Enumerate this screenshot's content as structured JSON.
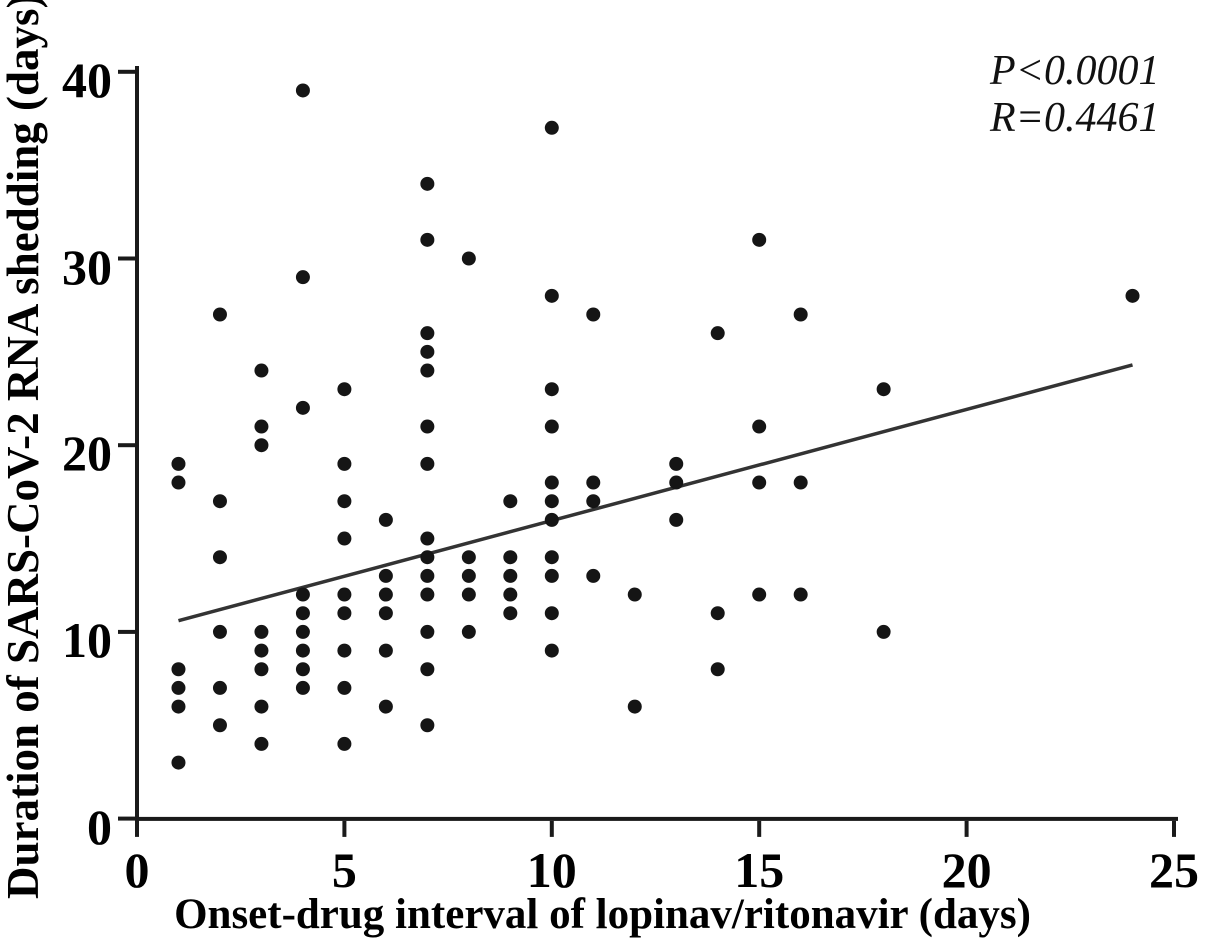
{
  "stats": {
    "p_value": "P<0.0001",
    "r_value": "R=0.4461"
  },
  "chart_data": {
    "type": "scatter",
    "title": "",
    "xlabel": "Onset-drug interval of lopinav/ritonavir (days)",
    "ylabel": "Duration of SARS-CoV-2 RNA shedding (days)",
    "xlim": [
      0,
      25
    ],
    "ylim": [
      0,
      40
    ],
    "xticks": [
      0,
      5,
      10,
      15,
      20,
      25
    ],
    "yticks": [
      0,
      10,
      20,
      30,
      40
    ],
    "grid": false,
    "legend": null,
    "annotations": [
      "P<0.0001",
      "R=0.4461"
    ],
    "annotation_position": "top-right",
    "marker": {
      "shape": "circle",
      "color": "#151515",
      "radius": 7
    },
    "axis_color": "#1a1a1a",
    "trendline": {
      "x_start": 1,
      "y_start": 10.6,
      "x_end": 24,
      "y_end": 24.3,
      "color": "#333333"
    },
    "n_points": 101,
    "points": [
      [
        1,
        19
      ],
      [
        1,
        18
      ],
      [
        1,
        8
      ],
      [
        1,
        7
      ],
      [
        1,
        6
      ],
      [
        1,
        3
      ],
      [
        2,
        27
      ],
      [
        2,
        17
      ],
      [
        2,
        14
      ],
      [
        2,
        10
      ],
      [
        2,
        7
      ],
      [
        2,
        5
      ],
      [
        3,
        24
      ],
      [
        3,
        21
      ],
      [
        3,
        20
      ],
      [
        3,
        10
      ],
      [
        3,
        9
      ],
      [
        3,
        8
      ],
      [
        3,
        6
      ],
      [
        3,
        4
      ],
      [
        4,
        39
      ],
      [
        4,
        29
      ],
      [
        4,
        22
      ],
      [
        4,
        12
      ],
      [
        4,
        11
      ],
      [
        4,
        10
      ],
      [
        4,
        9
      ],
      [
        4,
        8
      ],
      [
        4,
        7
      ],
      [
        5,
        23
      ],
      [
        5,
        19
      ],
      [
        5,
        17
      ],
      [
        5,
        15
      ],
      [
        5,
        12
      ],
      [
        5,
        11
      ],
      [
        5,
        9
      ],
      [
        5,
        7
      ],
      [
        5,
        4
      ],
      [
        6,
        16
      ],
      [
        6,
        13
      ],
      [
        6,
        12
      ],
      [
        6,
        11
      ],
      [
        6,
        9
      ],
      [
        6,
        6
      ],
      [
        7,
        34
      ],
      [
        7,
        31
      ],
      [
        7,
        26
      ],
      [
        7,
        25
      ],
      [
        7,
        24
      ],
      [
        7,
        21
      ],
      [
        7,
        19
      ],
      [
        7,
        15
      ],
      [
        7,
        14
      ],
      [
        7,
        13
      ],
      [
        7,
        12
      ],
      [
        7,
        10
      ],
      [
        7,
        8
      ],
      [
        7,
        5
      ],
      [
        8,
        30
      ],
      [
        8,
        14
      ],
      [
        8,
        13
      ],
      [
        8,
        12
      ],
      [
        8,
        10
      ],
      [
        9,
        17
      ],
      [
        9,
        14
      ],
      [
        9,
        13
      ],
      [
        9,
        12
      ],
      [
        9,
        11
      ],
      [
        10,
        37
      ],
      [
        10,
        28
      ],
      [
        10,
        23
      ],
      [
        10,
        21
      ],
      [
        10,
        18
      ],
      [
        10,
        17
      ],
      [
        10,
        16
      ],
      [
        10,
        14
      ],
      [
        10,
        13
      ],
      [
        10,
        11
      ],
      [
        10,
        9
      ],
      [
        11,
        27
      ],
      [
        11,
        18
      ],
      [
        11,
        17
      ],
      [
        11,
        13
      ],
      [
        12,
        12
      ],
      [
        12,
        6
      ],
      [
        13,
        19
      ],
      [
        13,
        18
      ],
      [
        13,
        16
      ],
      [
        14,
        26
      ],
      [
        14,
        11
      ],
      [
        14,
        8
      ],
      [
        15,
        31
      ],
      [
        15,
        21
      ],
      [
        15,
        18
      ],
      [
        15,
        12
      ],
      [
        16,
        27
      ],
      [
        16,
        18
      ],
      [
        16,
        12
      ],
      [
        18,
        23
      ],
      [
        18,
        10
      ],
      [
        24,
        28
      ]
    ]
  }
}
